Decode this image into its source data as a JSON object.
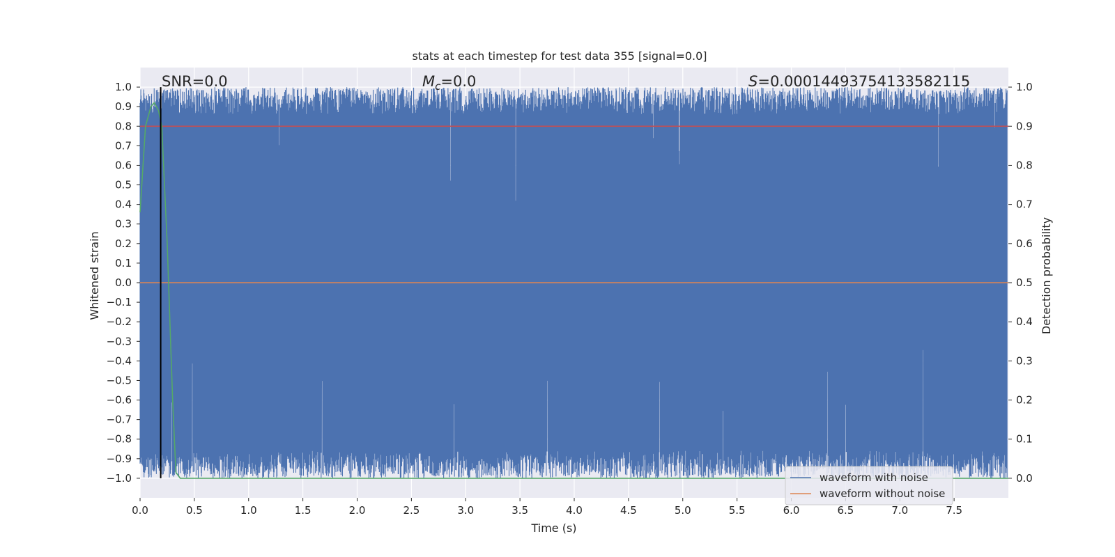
{
  "chart_data": {
    "type": "line",
    "title": "stats at each timestep for test data 355 [signal=0.0]",
    "xlabel": "Time (s)",
    "ylabel_left": "Whitened strain",
    "ylabel_right": "Detection probability",
    "xlim": [
      0.0,
      8.0
    ],
    "ylim_left": [
      -1.1,
      1.1
    ],
    "ylim_right": [
      -0.05,
      1.05
    ],
    "x_ticks": [
      "0.0",
      "0.5",
      "1.0",
      "1.5",
      "2.0",
      "2.5",
      "3.0",
      "3.5",
      "4.0",
      "4.5",
      "5.0",
      "5.5",
      "6.0",
      "6.5",
      "7.0",
      "7.5"
    ],
    "y_ticks_left": [
      "1.0",
      "0.9",
      "0.8",
      "0.7",
      "0.6",
      "0.5",
      "0.4",
      "0.3",
      "0.2",
      "0.1",
      "0.0",
      "−0.1",
      "−0.2",
      "−0.3",
      "−0.4",
      "−0.5",
      "−0.6",
      "−0.7",
      "−0.8",
      "−0.9",
      "−1.0"
    ],
    "y_ticks_right": [
      "1.0",
      "0.9",
      "0.8",
      "0.7",
      "0.6",
      "0.5",
      "0.4",
      "0.3",
      "0.2",
      "0.1",
      "0.0"
    ],
    "grid": true,
    "legend_position": "lower-right",
    "annotations": {
      "snr": "SNR=0.0",
      "mc_symbol": "M",
      "mc_sub": "c",
      "mc_value": "=0.0",
      "s_symbol": "S",
      "s_value": "=0.00014493754133582115"
    },
    "series": [
      {
        "name": "waveform with noise",
        "axis": "left",
        "color": "#4c72b0",
        "description_range": [
          -1.0,
          1.0
        ],
        "style": "dense noise spanning approx -1.0 to 1.0 over 0 to 8 s"
      },
      {
        "name": "waveform without noise",
        "axis": "left",
        "color": "#dd8452",
        "x": [
          0.0,
          8.0
        ],
        "y": [
          0.0,
          0.0
        ]
      },
      {
        "axis": "right",
        "color": "#c44e52",
        "x": [
          0.0,
          8.0
        ],
        "y": [
          0.9,
          0.9
        ]
      },
      {
        "axis": "right",
        "color": "#55a868",
        "x": [
          0.0,
          0.05,
          0.1,
          0.13,
          0.17,
          0.2,
          0.25,
          0.3,
          0.33,
          0.37,
          0.5,
          1.0,
          2.0,
          4.0,
          6.0,
          8.0
        ],
        "y": [
          0.68,
          0.9,
          0.95,
          0.96,
          0.94,
          0.9,
          0.6,
          0.2,
          0.015,
          0.0,
          0.0,
          0.0,
          0.0,
          0.0,
          0.0,
          0.0
        ]
      },
      {
        "axis": "left",
        "color": "#000000",
        "x": [
          0.19,
          0.19
        ],
        "y": [
          -1.0,
          1.0
        ]
      }
    ]
  }
}
